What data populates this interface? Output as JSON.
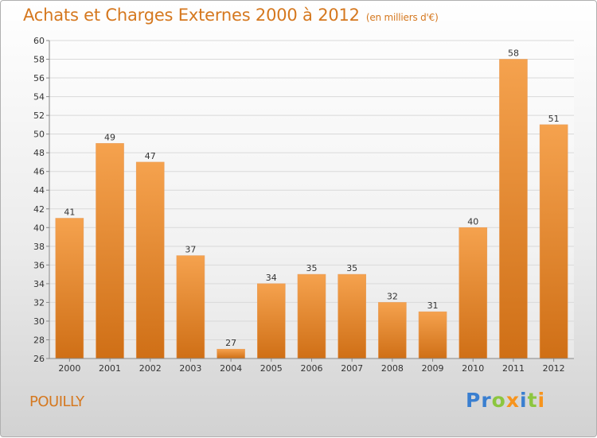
{
  "header": {
    "title": "Achats et Charges Externes 2000 à 2012",
    "unit": "(en milliers d'€)"
  },
  "footer": {
    "commune": "POUILLY",
    "logo": [
      {
        "char": "P",
        "color": "#3a7fd0"
      },
      {
        "char": "r",
        "color": "#3a7fd0"
      },
      {
        "char": "o",
        "color": "#8cc63f"
      },
      {
        "char": "x",
        "color": "#f7941d"
      },
      {
        "char": "i",
        "color": "#3a7fd0"
      },
      {
        "char": "t",
        "color": "#8cc63f"
      },
      {
        "char": "i",
        "color": "#f7941d"
      }
    ]
  },
  "colors": {
    "bar_light": "#f5a24e",
    "bar_dark": "#cf6f16",
    "title": "#d5781f",
    "grid": "#d9d9d9"
  },
  "chart_data": {
    "type": "bar",
    "title": "Achats et Charges Externes 2000 à 2012",
    "subtitle": "(en milliers d'€)",
    "categories": [
      "2000",
      "2001",
      "2002",
      "2003",
      "2004",
      "2005",
      "2006",
      "2007",
      "2008",
      "2009",
      "2010",
      "2011",
      "2012"
    ],
    "values": [
      41,
      49,
      47,
      37,
      27,
      34,
      35,
      35,
      32,
      31,
      40,
      58,
      51
    ],
    "ylim": [
      26,
      60
    ],
    "yticks": [
      26,
      28,
      30,
      32,
      34,
      36,
      38,
      40,
      42,
      44,
      46,
      48,
      50,
      52,
      54,
      56,
      58,
      60
    ],
    "grid": true,
    "legend": "none"
  }
}
